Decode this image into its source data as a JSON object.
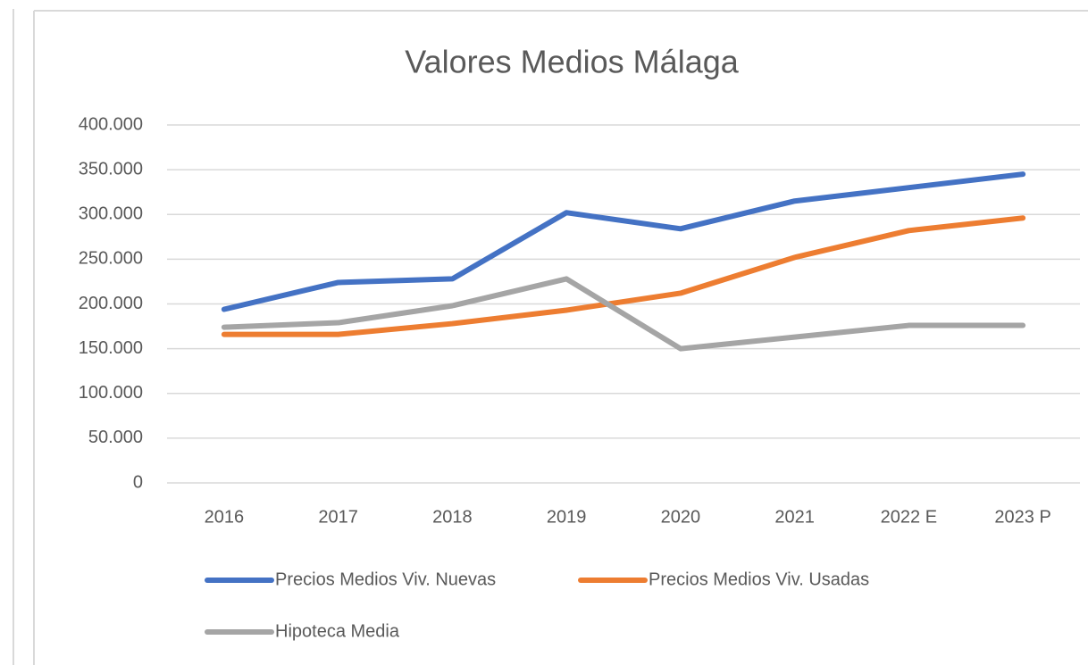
{
  "chart_data": {
    "type": "line",
    "title": "Valores Medios Málaga",
    "categories": [
      "2016",
      "2017",
      "2018",
      "2019",
      "2020",
      "2021",
      "2022 E",
      "2023 P"
    ],
    "series": [
      {
        "name": "Precios Medios Viv. Nuevas",
        "color": "#4472c4",
        "values": [
          194000,
          224000,
          228000,
          302000,
          284000,
          315000,
          330000,
          345000
        ]
      },
      {
        "name": "Precios Medios Viv. Usadas",
        "color": "#ed7d31",
        "values": [
          166000,
          166000,
          178000,
          193000,
          212000,
          252000,
          282000,
          296000
        ]
      },
      {
        "name": "Hipoteca Media",
        "color": "#a5a5a5",
        "values": [
          174000,
          179000,
          198000,
          228000,
          150000,
          163000,
          176000,
          176000
        ]
      }
    ],
    "ylim": [
      0,
      400000
    ],
    "yticks": [
      0,
      {
        "value": 50000,
        "label": "50.000"
      },
      {
        "value": 100000,
        "label": "100.000"
      },
      {
        "value": 150000,
        "label": "150.000"
      },
      {
        "value": 200000,
        "label": "200.000"
      },
      {
        "value": 250000,
        "label": "250.000"
      },
      {
        "value": 300000,
        "label": "300.000"
      },
      {
        "value": 350000,
        "label": "350.000"
      },
      {
        "value": 400000,
        "label": "400.000"
      }
    ],
    "grid": true,
    "legend": "bottom"
  }
}
